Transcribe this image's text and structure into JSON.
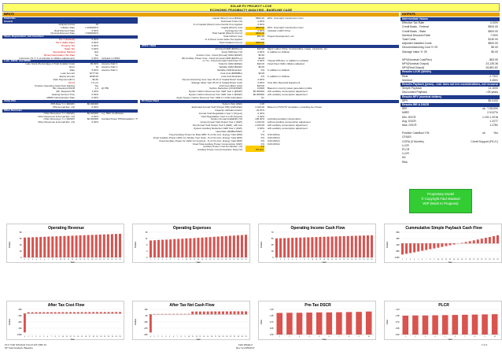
{
  "title": {
    "line1": "SOLAR PV PROJECT LCOE",
    "line2": "ECONOMIC FEASIBILITY ANALYSIS - BASELINE CASE"
  },
  "sections": {
    "inputs": "INPUTS",
    "outputs": "OUTPUTS"
  },
  "left_col": [
    {
      "lbl": "Financials",
      "type": "head"
    },
    {
      "lbl": "General",
      "type": "head"
    },
    {
      "lbl": "Analysis Period",
      "val": "25"
    },
    {
      "lbl": "Inflation Rate",
      "val": "1.2000000%"
    },
    {
      "lbl": "Real Discount Rate",
      "val": "5.00%"
    },
    {
      "lbl": "Nominal Discount Rate",
      "val": "7.0000000%"
    },
    {
      "lbl": "Taxes, Depreciation, and Incentives",
      "type": "head"
    },
    {
      "lbl": "Tax 1 (Federal)",
      "val": "0.00%",
      "type": "red"
    },
    {
      "lbl": "Tax 2 (State Rate)",
      "val": "0.00%",
      "type": "red"
    },
    {
      "lbl": "Property Tax",
      "val": "0.00%",
      "type": "red"
    },
    {
      "lbl": "Sales Tax",
      "val": "0.00%",
      "type": "red"
    },
    {
      "lbl": "Depreciation Method",
      "val": "N/A",
      "type": "red"
    },
    {
      "lbl": "Bonus Depreciation Tax Rate",
      "val": "No",
      "type": "red"
    },
    {
      "lbl": "Insurance (% Yr 1 of estimate to inflation adjustment)",
      "val": "0.00%",
      "note": "Included in OPEX"
    },
    {
      "lbl": "Loan, EBCR, and MRRS",
      "type": "head"
    },
    {
      "lbl": "Loan Grant (Percentage of Total Installed Cost)",
      "val": "60.00%",
      "note": "Assume Debt 1"
    },
    {
      "lbl": "Tenor",
      "val": "10",
      "note": "Assume Debt 1"
    },
    {
      "lbl": "Rate",
      "val": "5.00%",
      "note": "Assume Debt 1"
    },
    {
      "lbl": "Loan Amount",
      "val": "$777.00"
    },
    {
      "lbl": "Equity Amount",
      "val": "$198.00"
    },
    {
      "lbl": "Debt Payment ($/Yr)",
      "val": "-$6.82"
    },
    {
      "lbl": "Terms",
      "val": "1.0 yrs",
      "type": "red"
    },
    {
      "lbl": "Positive Operating Cash Flow Starting",
      "val": "Yes"
    },
    {
      "lbl": "Min. Required DSCR",
      "val": "1.2",
      "note": "@ P50"
    },
    {
      "lbl": "Min. Required PR",
      "val": "1.20%"
    },
    {
      "lbl": "Heating Account Time",
      "val": "0.00%"
    },
    {
      "lbl": "MRRS Administration Rate",
      "val": "0.00%"
    },
    {
      "lbl": "Utility PPA",
      "type": "head"
    },
    {
      "lbl": "PPA Rate Yr 1 ($/kWh)",
      "val": "$0.030000"
    },
    {
      "lbl": "PPA Annual Esc. (%)",
      "val": "0.00%"
    },
    {
      "lbl": "Other Revenues",
      "type": "head"
    },
    {
      "lbl": "Other Revenues Yr 1 ($/kWh)",
      "val": "$0.000000",
      "note": "e.g. REC Certificates"
    },
    {
      "lbl": "Other Revenues & Annual Esc. (%)",
      "val": "0.00%"
    },
    {
      "lbl": "Other Revenues Yr 1 ($/kWh)",
      "val": "$0.000000",
      "note": "Avoided Power PPA Escalation / TOF"
    },
    {
      "lbl": "Other Revenues & Annual Esc. (%)",
      "val": "0.00%"
    }
  ],
  "mid_col": [
    {
      "lbl": "Capital (Direct) Cost ($/kWp)",
      "val": "$800.00",
      "note": "EPC: Overnight Construction Cost"
    },
    {
      "lbl": "Overhead Costs (%)",
      "val": "0.00%"
    },
    {
      "lbl": "% of Capital (Direct) Cost-Overhd Cnty Applied",
      "val": "0.00%"
    },
    {
      "lbl": "Capital (Direct) Cost",
      "val": "$800.00",
      "type": "orange",
      "note": "EPC: Overnight Construction Cost"
    },
    {
      "lbl": "Contingency (%)",
      "val": "0.00%",
      "note": "Included in EPC Price"
    },
    {
      "lbl": "Total Capital (Direct) Cost (s)",
      "val": "$800.00",
      "type": "orange"
    },
    {
      "lbl": "Total Indirect Cost",
      "val": "$50.00",
      "note": "Project Development, etc."
    },
    {
      "lbl": "% of Direct Costs Sales Tax Applied",
      "val": "0%"
    },
    {
      "lbl": "Total Installed Cost (s)",
      "val": "$850.00",
      "type": "orange"
    },
    {
      "lbl": "OPEX / O&M",
      "type": "head"
    },
    {
      "lbl": "(A) Fixed O&M ($/kWp-yr)",
      "val": "$10.00",
      "note": "Mgmt, Labor, Parts, Consumables, Lease, Insurance, etc."
    },
    {
      "lbl": "Fixed O&M Esc (%)",
      "val": "0.00%",
      "note": "in addition to inflation"
    },
    {
      "lbl": "Inverter Cost - Fixed (Annual) O&M ($/kWh)",
      "val": "$0.00"
    },
    {
      "lbl": "(B) Auxiliary Power Cost - Fixed (Annual) O&M ($/kWh-yr)",
      "val": "$0.00"
    },
    {
      "lbl": "or Yrs - Fixed (Annual) Cash Flow Yrs",
      "val": "0.00%",
      "note": "Tripped PPA Esc. in addition to inflation"
    },
    {
      "lbl": "Total Fix O&M ($/kWp)",
      "val": "$10.00",
      "note": "Fixed Fleet O&M, inflation adjusted"
    },
    {
      "lbl": "Variable O&M ($/kWh)",
      "val": "$0.00"
    },
    {
      "lbl": "Variable O&M Real Esc.",
      "val": "0%",
      "note": "in addition to inflation"
    },
    {
      "lbl": "Fuel Cost ($/MMBtu)",
      "val": "$0.00"
    },
    {
      "lbl": "Fuel Cost Real Esc.",
      "val": "0%",
      "note": "in addition to inflation"
    },
    {
      "lbl": "Decommissioning Cost Year 25 (% of Capital Direct Cost)",
      "val": "0.00%"
    },
    {
      "lbl": "Salvage Value Year 25 (% of Capital Direct Cost)",
      "val": "0.00%",
      "note": "Only after Recycled Equipment"
    },
    {
      "lbl": "CO2 Cost ($/ton CO2)",
      "val": "$10.00"
    },
    {
      "lbl": "Carbon Reduction (tCO2/MWh)",
      "val": "0.6000",
      "note": "Based on country power generation profile"
    },
    {
      "lbl": "System Carbon Revenue from CER Year 1 ($/kWh)",
      "val": "$0.006000",
      "note": "with auxiliary consumption adjustment"
    },
    {
      "lbl": "System Carbon Revenue from CER Year 1 ($/kWh)",
      "val": "$0.006000",
      "note": "with auxiliary consumption adjustment"
    },
    {
      "lbl": "Apply System Carbon Revenue from CER in LCOE Calculation",
      "val": "No"
    },
    {
      "lbl": "PV Power Plant",
      "type": "head"
    },
    {
      "lbl": "System Size (kWp)",
      "val": "1.00"
    },
    {
      "lbl": "Estimated Annual Yield (Output P50) (kWh/kWp)",
      "val": "2,100.00",
      "note": "Based on PVSYST simulation, excluding Aux Power"
    },
    {
      "lbl": "Capacity Utilization Factor",
      "val": "23.97%"
    },
    {
      "lbl": "Annual Yield Degradation Year 1 (%/year)",
      "val": "0.40%"
    },
    {
      "lbl": "Yield Degradation Year 2 to 25 (%/year)",
      "val": "0.40%"
    },
    {
      "lbl": "System Annual Availability (%)",
      "val": "100.00%",
      "note": "excluding auxiliary consumption"
    },
    {
      "lbl": "Gross Annual Yield Output Year 1 (kWh)",
      "val": "2,100.00",
      "note": "without auxiliary consumption adjustment"
    },
    {
      "lbl": "Net Annual Yield Output Year 1 (kWh), with Aux",
      "val": "2,100.00",
      "note": "with auxiliary consumption adjustment"
    },
    {
      "lbl": "System Auxiliary Reduction CER Year 1 (kWh)",
      "val": "0.00%",
      "note": "with auxiliary consumption adjustment"
    },
    {
      "lbl": "Heat Rate (MMBtu/MWh)",
      "val": "0"
    },
    {
      "lbl": "Fixed Auxiliary Power for Rate MBT, % of Nm Ann. Energy Yield (MW)",
      "val": "0%",
      "note": "0.00 kWh/yr"
    },
    {
      "lbl": "Fixed Auxiliary Power HVAC for Shelter Year Outd., % of Nm Ann. Energy Yield (MW)",
      "val": "0%",
      "note": "0.00 kWh/yr"
    },
    {
      "lbl": "Fixed Auxiliary Power for HVAC for Inverters , % of Nm Ann. Energy Yield (MW)",
      "val": "0%",
      "note": "0.00 kWh/yr"
    },
    {
      "lbl": "Fixed Total Auxiliary Power Consumption (kWh)",
      "val": "0%",
      "note": "0.00 kWh/yr"
    },
    {
      "lbl": "Auxiliary Power Cost Annual Esc. (%)",
      "val": "0%",
      "type": "orange"
    },
    {
      "lbl": "Auxiliary Power Cost Annual Esc. Rate (%)",
      "val": "0% Esc.",
      "type": "orange"
    }
  ],
  "outputs": [
    {
      "lbl": "Intermediate Values",
      "type": "head"
    },
    {
      "lbl": "Effective Tax Rate",
      "val": "0.00%"
    },
    {
      "lbl": "Credit Basis - Federal",
      "val": "$900.00"
    },
    {
      "lbl": "Credit Basis - State",
      "val": "$900.00"
    },
    {
      "lbl": "Nominal Discount Rate",
      "val": "7.00%"
    },
    {
      "lbl": "Total Costs",
      "val": "$130.00"
    },
    {
      "lbl": "Adjusted Installed Costs",
      "val": "$900.00"
    },
    {
      "lbl": "Decommissioning Cost Yr 25",
      "val": "$0.00"
    },
    {
      "lbl": "Salvage Value Yr 25",
      "val": "$0.00"
    },
    {
      "lbl": "",
      "val": ""
    },
    {
      "lbl": "NPV(Nominal Cost/Rev)",
      "val": "-$53.90"
    },
    {
      "lbl": "NPV(Nominal Output)",
      "val": "23,135.36"
    },
    {
      "lbl": "NPV(Real Output)",
      "val": "26,881.81"
    },
    {
      "lbl": "Results LCOE ($/kWh)",
      "type": "head"
    },
    {
      "lbl": "Real",
      "val": "2.7321"
    },
    {
      "lbl": "Nominal",
      "val": "3.4001"
    },
    {
      "lbl": "Results Payback (years) - real: does not incl considerations, not recourse",
      "type": "head"
    },
    {
      "lbl": "Simple Payback",
      "val": "11.1000"
    },
    {
      "lbl": "Discounted Payback",
      "val": ">25 years"
    },
    {
      "lbl": "Results NPV (nominal dollars)",
      "type": "head"
    },
    {
      "lbl": "NPV",
      "val": "$0.0102"
    },
    {
      "lbl": "Results IRR & DSCR",
      "type": "head"
    },
    {
      "lbl": "IRR",
      "val": "7.0010%",
      "note": "ok"
    },
    {
      "lbl": "MIRR",
      "val": "2.0107%"
    },
    {
      "lbl": "Min. DSCR",
      "val": "1.2018",
      "note": "1.201"
    },
    {
      "lbl": "Avg. DSCR",
      "val": "1.2277"
    },
    {
      "lbl": "Max. DSCR",
      "val": "1.2781"
    },
    {
      "lbl": "",
      "val": ""
    },
    {
      "lbl": "Positive Cashflow Y/N",
      "val": "Yes",
      "note": "ok"
    },
    {
      "lbl": "CFADS",
      "val": ""
    },
    {
      "lbl": "CORA (3 Months)",
      "val": "Credit Support (P/L/C)"
    },
    {
      "lbl": "LLCR",
      "val": ""
    },
    {
      "lbl": "PLCR",
      "val": ""
    },
    {
      "lbl": "LLCR",
      "val": ""
    },
    {
      "lbl": "NC",
      "val": ""
    },
    {
      "lbl": "Risk",
      "val": ""
    }
  ],
  "watermark": {
    "line1": "Proprietary Model",
    "line2": "© Copyright Faid Waaked",
    "line3": "WIP (Work In Progress)"
  },
  "chart_data": [
    {
      "type": "bar",
      "title": "Operating Revenue",
      "xlabel": "Year",
      "ylabel": "Dollars",
      "categories": [
        "1",
        "2",
        "3",
        "4",
        "5",
        "6",
        "7",
        "8",
        "9",
        "10",
        "11",
        "12",
        "13",
        "14",
        "15",
        "16",
        "17",
        "18",
        "19",
        "20",
        "21",
        "22",
        "23",
        "24",
        "25"
      ],
      "values": [
        63.0,
        63.5,
        64.0,
        64.5,
        65.0,
        65.5,
        66.0,
        66.5,
        67.0,
        67.5,
        68.0,
        68.5,
        69.0,
        69.5,
        70.0,
        70.5,
        71.0,
        71.5,
        72.0,
        72.5,
        73.0,
        73.5,
        74.0,
        74.5,
        75.0
      ],
      "ylim": [
        0,
        80
      ],
      "color": "#d9534f"
    },
    {
      "type": "bar",
      "title": "Operating Expenses",
      "xlabel": "Year",
      "ylabel": "Dollars",
      "categories": [
        "1",
        "2",
        "3",
        "4",
        "5",
        "6",
        "7",
        "8",
        "9",
        "10",
        "11",
        "12",
        "13",
        "14",
        "15",
        "16",
        "17",
        "18",
        "19",
        "20",
        "21",
        "22",
        "23",
        "24",
        "25"
      ],
      "values": [
        10.1,
        10.2,
        10.4,
        10.5,
        10.6,
        10.7,
        10.9,
        11.0,
        11.1,
        11.3,
        11.4,
        11.5,
        11.7,
        11.8,
        12.0,
        12.1,
        12.3,
        12.4,
        12.6,
        12.7,
        12.9,
        13.0,
        13.2,
        13.3,
        13.5
      ],
      "ylim": [
        0,
        15
      ],
      "color": "#d9534f"
    },
    {
      "type": "bar",
      "title": "Operating Income Cash Flow",
      "xlabel": "Year",
      "ylabel": "Dollars",
      "categories": [
        "1",
        "2",
        "3",
        "4",
        "5",
        "6",
        "7",
        "8",
        "9",
        "10",
        "11",
        "12",
        "13",
        "14",
        "15",
        "16",
        "17",
        "18",
        "19",
        "20",
        "21",
        "22",
        "23",
        "24",
        "25"
      ],
      "values": [
        52.9,
        53.3,
        53.6,
        54.0,
        54.4,
        54.8,
        55.1,
        55.5,
        55.9,
        56.2,
        56.6,
        57.0,
        57.3,
        57.7,
        58.0,
        58.4,
        58.7,
        59.1,
        59.4,
        59.8,
        60.1,
        60.5,
        60.8,
        61.2,
        61.5
      ],
      "ylim": [
        0,
        70
      ],
      "color": "#d9534f"
    },
    {
      "type": "bar",
      "title": "Cummulative Simple Payback Cash Flow",
      "xlabel": "Year",
      "ylabel": "Dollars",
      "categories": [
        "1",
        "2",
        "3",
        "4",
        "5",
        "6",
        "7",
        "8",
        "9",
        "10",
        "11",
        "12",
        "13",
        "14",
        "15",
        "16",
        "17",
        "18",
        "19",
        "20",
        "21",
        "22",
        "23",
        "24",
        "25"
      ],
      "values": [
        -797,
        -744,
        -690,
        -636,
        -582,
        -527,
        -472,
        -416,
        -360,
        -304,
        -248,
        -191,
        -133,
        -76,
        -18,
        40,
        99,
        158,
        217,
        277,
        337,
        398,
        459,
        520,
        581
      ],
      "ylim": [
        -1000,
        800
      ],
      "color": "#d9534f"
    },
    {
      "type": "bar",
      "title": "After Tax Cost Flow",
      "xlabel": "Year",
      "ylabel": "Dollars",
      "categories": [
        "0",
        "1",
        "2",
        "3",
        "4",
        "5",
        "6",
        "7",
        "8",
        "9",
        "10",
        "11",
        "12",
        "13",
        "14",
        "15",
        "16",
        "17",
        "18",
        "19",
        "20",
        "21",
        "22",
        "23",
        "24",
        "25"
      ],
      "values": [
        -900,
        63,
        63,
        64,
        64,
        65,
        65,
        66,
        66,
        67,
        67,
        68,
        68,
        69,
        69,
        70,
        70,
        71,
        71,
        72,
        72,
        73,
        73,
        74,
        74,
        75
      ],
      "ylim": [
        -1000,
        200
      ],
      "color": "#d9534f"
    },
    {
      "type": "bar",
      "title": "After Tax Net Cash Flow",
      "xlabel": "Year",
      "ylabel": "Dollars",
      "categories": [
        "0",
        "1",
        "2",
        "3",
        "4",
        "5",
        "6",
        "7",
        "8",
        "9",
        "10",
        "11",
        "12",
        "13",
        "14",
        "15",
        "16",
        "17",
        "18",
        "19",
        "20",
        "21",
        "22",
        "23",
        "24",
        "25"
      ],
      "values": [
        -360,
        9.0,
        9.2,
        9.5,
        9.7,
        10.0,
        10.3,
        10.5,
        10.8,
        11.1,
        11.3,
        56.6,
        57.0,
        57.3,
        57.7,
        58.0,
        58.4,
        58.7,
        59.1,
        59.4,
        59.8,
        60.1,
        60.5,
        60.8,
        61.2,
        61.5
      ],
      "ylim": [
        -400,
        100
      ],
      "color": "#d9534f"
    },
    {
      "type": "bar",
      "title": "Pre-Tax DSCR",
      "xlabel": "Year",
      "ylabel": "Ratio",
      "categories": [
        "1",
        "2",
        "3",
        "4",
        "5",
        "6",
        "7",
        "8",
        "9",
        "10"
      ],
      "values": [
        1.2,
        1.21,
        1.21,
        1.22,
        1.23,
        1.23,
        1.24,
        1.25,
        1.26,
        1.28
      ],
      "ylim": [
        0,
        1.4
      ],
      "color": "#d9534f"
    },
    {
      "type": "bar",
      "title": "PLCR",
      "xlabel": "Year",
      "ylabel": "Ratio",
      "categories": [
        "1",
        "2",
        "3",
        "4",
        "5",
        "6",
        "7",
        "8",
        "9",
        "10"
      ],
      "values": [
        1.05,
        1.06,
        1.06,
        1.07,
        1.08,
        1.09,
        1.1,
        1.11,
        1.12,
        1.13
      ],
      "ylim": [
        0,
        1.4
      ],
      "color": "#d9534f"
    }
  ],
  "footer": {
    "left1": "10.2 CUE Schedule Fixed LHS 1992-12",
    "left2": "3P Yield Analysis: Baseline",
    "center1": "Faid Waaked",
    "center2": "Rev 12 2/25/2017",
    "right": "1 of 1"
  }
}
